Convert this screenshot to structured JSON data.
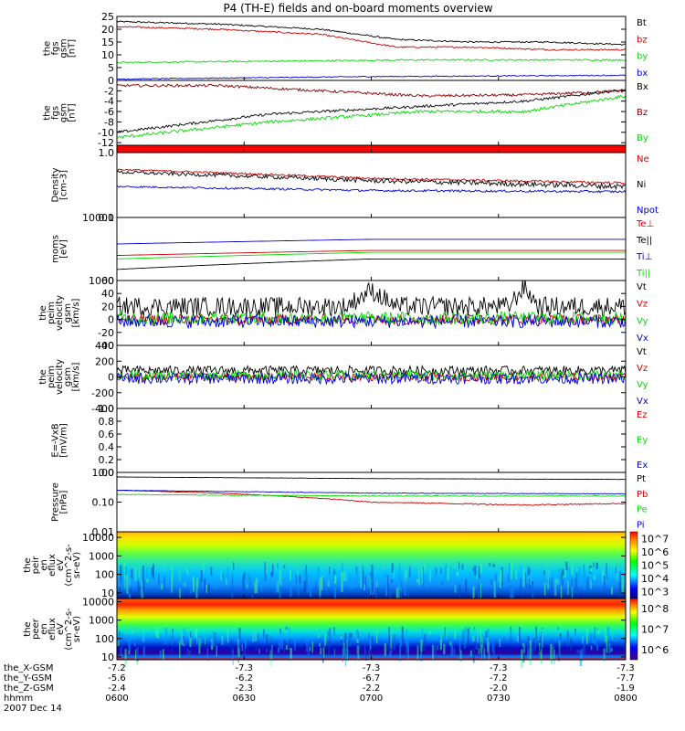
{
  "title": "P4 (TH-E) fields and on-board moments overview",
  "chart_data": [
    {
      "type": "line",
      "ylabel_lines": [
        "the",
        "fgs",
        "gsm",
        "[nT]"
      ],
      "ylim": [
        0,
        25
      ],
      "yscale": "linear",
      "yticks": [
        0,
        5,
        10,
        15,
        20,
        25
      ],
      "ytick_labels": [
        "0",
        "5",
        "10",
        "15",
        "20",
        "25"
      ],
      "series": [
        {
          "name": "Bt",
          "color": "#000000",
          "noise": 0.3,
          "x": [
            0,
            0.2,
            0.4,
            0.55,
            0.7,
            0.85,
            1
          ],
          "values": [
            23,
            22,
            20,
            16,
            15,
            15,
            14
          ]
        },
        {
          "name": "bz",
          "color": "#cc0000",
          "noise": 0.3,
          "x": [
            0,
            0.2,
            0.4,
            0.55,
            0.7,
            0.85,
            1
          ],
          "values": [
            21,
            20,
            18,
            13,
            13,
            12,
            12
          ]
        },
        {
          "name": "by",
          "color": "#00dd00",
          "noise": 0.3,
          "x": [
            0,
            0.3,
            0.6,
            1
          ],
          "values": [
            7,
            7.5,
            8,
            8
          ]
        },
        {
          "name": "bx",
          "color": "#0000cc",
          "noise": 0.2,
          "x": [
            0,
            0.5,
            1
          ],
          "values": [
            0.5,
            1.5,
            2
          ]
        }
      ]
    },
    {
      "type": "line",
      "ylabel_lines": [
        "the",
        "fgs",
        "gsm",
        "[nT]"
      ],
      "ylim": [
        -12.5,
        0
      ],
      "yscale": "linear",
      "yticks": [
        -12,
        -10,
        -8,
        -6,
        -4,
        -2
      ],
      "ytick_labels": [
        "-12",
        "-10",
        "-8",
        "-6",
        "-4",
        "-2"
      ],
      "series": [
        {
          "name": "Bx",
          "color": "#000000",
          "noise": 0.25,
          "x": [
            0,
            0.3,
            0.6,
            0.8,
            1
          ],
          "values": [
            -10,
            -6.5,
            -5,
            -4,
            -1.8
          ]
        },
        {
          "name": "Bz",
          "color": "#880000",
          "noise": 0.25,
          "x": [
            0,
            0.2,
            0.4,
            0.6,
            0.8,
            1
          ],
          "values": [
            -1,
            -1,
            -2,
            -3,
            -2.8,
            -2
          ]
        },
        {
          "name": "By",
          "color": "#00dd00",
          "noise": 0.3,
          "x": [
            0,
            0.3,
            0.6,
            0.8,
            1
          ],
          "values": [
            -11,
            -8,
            -6,
            -6,
            -3
          ]
        }
      ]
    },
    {
      "type": "bar",
      "color": "#ff0000",
      "ylabel_lines": []
    },
    {
      "type": "line",
      "ylabel_lines": [
        "Density",
        "[cm-3]"
      ],
      "ylim": [
        0.1,
        1.0
      ],
      "yscale": "log",
      "yticks": [
        0.1,
        1.0
      ],
      "ytick_labels": [
        "0.1",
        "1.0"
      ],
      "series": [
        {
          "name": "Ne",
          "color": "#cc0000",
          "noise": 0.015,
          "x": [
            0,
            0.5,
            1
          ],
          "values": [
            0.55,
            0.4,
            0.34
          ]
        },
        {
          "name": "Ni",
          "color": "#000000",
          "noise": 0.03,
          "x": [
            0,
            0.5,
            1
          ],
          "values": [
            0.5,
            0.37,
            0.3
          ]
        },
        {
          "name": "Npot",
          "color": "#0000cc",
          "noise": 0.01,
          "x": [
            0,
            0.5,
            1
          ],
          "values": [
            0.3,
            0.26,
            0.25
          ]
        }
      ]
    },
    {
      "type": "line",
      "ylabel_lines": [
        "moms",
        "[eV]"
      ],
      "ylim": [
        1000,
        10000
      ],
      "yscale": "log",
      "yticks": [
        1000,
        10000
      ],
      "ytick_labels": [
        "1000",
        "10000"
      ],
      "series": [
        {
          "name": "Te⊥",
          "color": "#cc0000",
          "noise": 0.03,
          "x": [
            0,
            0.5,
            1
          ],
          "values": [
            2500,
            3000,
            3000
          ]
        },
        {
          "name": "Te||",
          "color": "#000000",
          "noise": 0.02,
          "x": [
            0,
            0.5,
            1
          ],
          "values": [
            1500,
            2200,
            2200
          ]
        },
        {
          "name": "Ti⊥",
          "color": "#0000cc",
          "noise": 0.04,
          "x": [
            0,
            0.5,
            1
          ],
          "values": [
            3800,
            4500,
            4500
          ]
        },
        {
          "name": "Ti||",
          "color": "#00dd00",
          "noise": 0.04,
          "x": [
            0,
            0.5,
            1
          ],
          "values": [
            2200,
            2800,
            2800
          ]
        }
      ]
    },
    {
      "type": "line",
      "ylabel_lines": [
        "the",
        "peim",
        "velocity",
        "gsm",
        "[km/s]"
      ],
      "ylim": [
        -40,
        60
      ],
      "yscale": "linear",
      "yticks": [
        -40,
        -20,
        0,
        20,
        40,
        60
      ],
      "ytick_labels": [
        "-40",
        "-20",
        "0",
        "20",
        "40",
        "60"
      ],
      "series": [
        {
          "name": "Vt",
          "color": "#000000",
          "noise": 15,
          "x": [
            0,
            0.45,
            0.5,
            0.55,
            0.77,
            0.8,
            0.83,
            1
          ],
          "values": [
            20,
            20,
            45,
            20,
            20,
            50,
            20,
            20
          ]
        },
        {
          "name": "Vz",
          "color": "#cc0000",
          "noise": 8,
          "x": [
            0,
            1
          ],
          "values": [
            0,
            0
          ]
        },
        {
          "name": "Vy",
          "color": "#00dd00",
          "noise": 10,
          "x": [
            0,
            1
          ],
          "values": [
            2,
            2
          ]
        },
        {
          "name": "Vx",
          "color": "#0000cc",
          "noise": 10,
          "x": [
            0,
            1
          ],
          "values": [
            -3,
            -3
          ]
        }
      ]
    },
    {
      "type": "line",
      "ylabel_lines": [
        "the",
        "peim",
        "velocity",
        "gsm",
        "[km/s]"
      ],
      "ylim": [
        -400,
        400
      ],
      "yscale": "linear",
      "yticks": [
        -400,
        -200,
        0,
        200,
        400
      ],
      "ytick_labels": [
        "-400",
        "-200",
        "0",
        "200",
        "400"
      ],
      "series": [
        {
          "name": "Vt",
          "color": "#000000",
          "noise": 60,
          "x": [
            0,
            1
          ],
          "values": [
            80,
            80
          ]
        },
        {
          "name": "Vz",
          "color": "#cc0000",
          "noise": 50,
          "x": [
            0,
            1
          ],
          "values": [
            0,
            0
          ]
        },
        {
          "name": "Vy",
          "color": "#00dd00",
          "noise": 60,
          "x": [
            0,
            1
          ],
          "values": [
            20,
            20
          ]
        },
        {
          "name": "Vx",
          "color": "#0000cc",
          "noise": 70,
          "x": [
            0,
            1
          ],
          "values": [
            -20,
            -20
          ]
        }
      ]
    },
    {
      "type": "line",
      "ylabel_lines": [
        "E=-VxB",
        "[mV/m]"
      ],
      "ylim": [
        0,
        1.0
      ],
      "yscale": "linear",
      "yticks": [
        0,
        0.2,
        0.4,
        0.6,
        0.8,
        1.0
      ],
      "ytick_labels": [
        "0.0",
        "0.2",
        "0.4",
        "0.6",
        "0.8",
        "1.0"
      ],
      "series": [
        {
          "name": "Ez",
          "color": "#cc0000",
          "x": [],
          "values": []
        },
        {
          "name": "Ey",
          "color": "#00dd00",
          "x": [],
          "values": []
        },
        {
          "name": "Ex",
          "color": "#0000cc",
          "x": [],
          "values": []
        }
      ]
    },
    {
      "type": "line",
      "ylabel_lines": [
        "Pressure",
        "[nPa]"
      ],
      "ylim": [
        0.01,
        1.0
      ],
      "yscale": "log",
      "yticks": [
        0.01,
        0.1,
        1.0
      ],
      "ytick_labels": [
        "0.01",
        "0.10",
        "1.00"
      ],
      "series": [
        {
          "name": "Pt",
          "color": "#000000",
          "noise": 0.005,
          "x": [
            0,
            0.5,
            1
          ],
          "values": [
            0.7,
            0.62,
            0.58
          ]
        },
        {
          "name": "Pb",
          "color": "#cc0000",
          "noise": 0.004,
          "x": [
            0,
            0.2,
            0.5,
            0.8,
            1
          ],
          "values": [
            0.25,
            0.2,
            0.1,
            0.08,
            0.09
          ]
        },
        {
          "name": "Pe",
          "color": "#00dd00",
          "noise": 0.005,
          "x": [
            0,
            0.5,
            1
          ],
          "values": [
            0.18,
            0.16,
            0.16
          ]
        },
        {
          "name": "Pi",
          "color": "#0000cc",
          "noise": 0.004,
          "x": [
            0,
            0.5,
            1
          ],
          "values": [
            0.25,
            0.2,
            0.19
          ]
        }
      ]
    },
    {
      "type": "heatmap",
      "ylabel_lines": [
        "the",
        "peir",
        "en",
        "eflux",
        "eV",
        "(cm^2-s-",
        "sr-eV)"
      ],
      "ylim": [
        5,
        20000
      ],
      "yscale": "log",
      "yticks": [
        10,
        100,
        1000,
        10000
      ],
      "ytick_labels": [
        "10",
        "100",
        "1000",
        "10000"
      ],
      "colorbar_ticks": [
        "10^3",
        "10^4",
        "10^5",
        "10^6",
        "10^7"
      ]
    },
    {
      "type": "heatmap",
      "ylabel_lines": [
        "the",
        "peer",
        "en",
        "eflux",
        "eV",
        "(cm^2-s-",
        "sr-eV)"
      ],
      "ylim": [
        7,
        15000
      ],
      "yscale": "log",
      "yticks": [
        10,
        100,
        1000,
        10000
      ],
      "ytick_labels": [
        "10",
        "100",
        "1000",
        "10000"
      ],
      "colorbar_ticks": [
        "10^6",
        "10^7",
        "10^8"
      ]
    }
  ],
  "x_axis": {
    "rows": [
      {
        "label": "the_X-GSM",
        "values": [
          "-7.2",
          "-7.3",
          "-7.3",
          "-7.3",
          "-7.3"
        ]
      },
      {
        "label": "the_Y-GSM",
        "values": [
          "-5.6",
          "-6.2",
          "-6.7",
          "-7.2",
          "-7.7"
        ]
      },
      {
        "label": "the_Z-GSM",
        "values": [
          "-2.4",
          "-2.3",
          "-2.2",
          "-2.0",
          "-1.9"
        ]
      },
      {
        "label": "hhmm",
        "values": [
          "0600",
          "0630",
          "0700",
          "0730",
          "0800"
        ]
      }
    ],
    "date": "2007 Dec 14"
  }
}
